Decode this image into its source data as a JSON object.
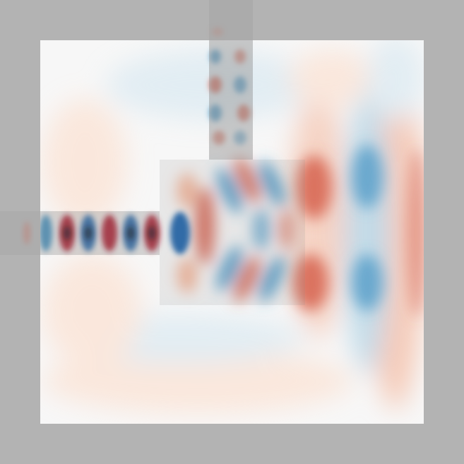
{
  "figure": {
    "kind": "wave field simulation",
    "colormap": [
      "#67001f",
      "#b2182b",
      "#d6604d",
      "#f4a582",
      "#fddbc7",
      "#f7f7f7",
      "#d1e5f0",
      "#92c5de",
      "#4393c3",
      "#2166ac",
      "#053061"
    ],
    "colors": {
      "background": "#b3b3b3",
      "domain": "#f7f7f7",
      "waveguide_overlay": "#9e9e9e",
      "positive": "#b2182b",
      "negative": "#2166ac",
      "peak_core": "#1a0a0a"
    }
  },
  "structures": [
    "input-waveguide",
    "output-waveguide",
    "design-region"
  ]
}
